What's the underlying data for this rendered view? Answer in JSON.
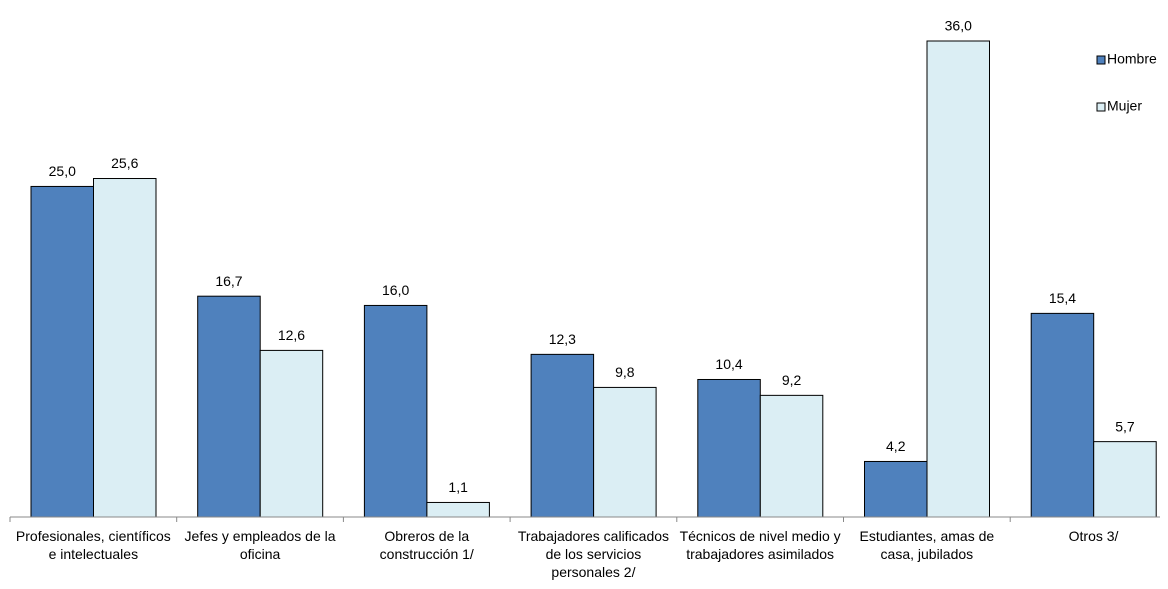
{
  "chart_data": {
    "type": "bar",
    "categories": [
      "Profesionales, científicos e intelectuales",
      "Jefes y empleados de la oficina",
      "Obreros de la construcción 1/",
      "Trabajadores calificados de los servicios personales 2/",
      "Técnicos de nivel medio y trabajadores asimilados",
      "Estudiantes, amas de casa, jubilados",
      "Otros 3/"
    ],
    "series": [
      {
        "name": "Hombre",
        "color": "#4f81bd",
        "values": [
          25.0,
          16.7,
          16.0,
          12.3,
          10.4,
          4.2,
          15.4
        ],
        "value_labels": [
          "25,0",
          "16,7",
          "16,0",
          "12,3",
          "10,4",
          "4,2",
          "15,4"
        ]
      },
      {
        "name": "Mujer",
        "color": "#dbeef4",
        "values": [
          25.6,
          12.6,
          1.1,
          9.8,
          9.2,
          36.0,
          5.7
        ],
        "value_labels": [
          "25,6",
          "12,6",
          "1,1",
          "9,8",
          "9,2",
          "36,0",
          "5,7"
        ]
      }
    ],
    "legend": "top-right"
  }
}
